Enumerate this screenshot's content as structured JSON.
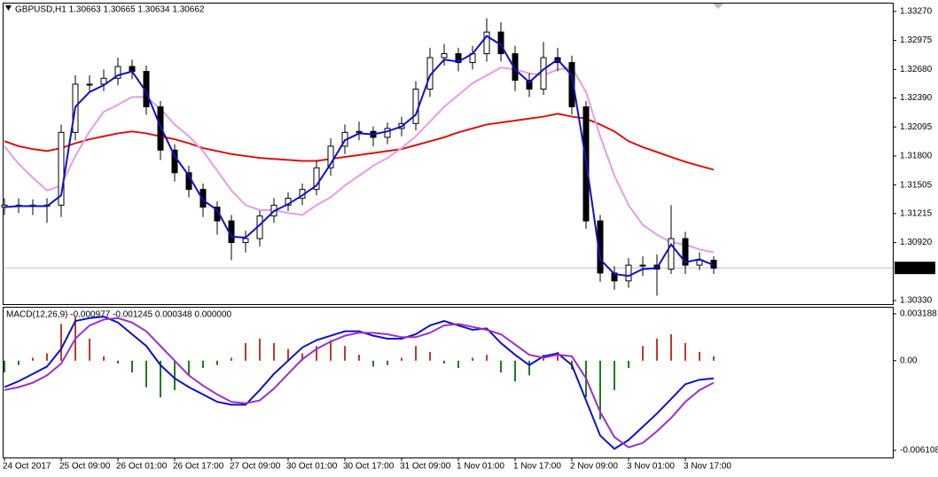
{
  "chart_data": [
    {
      "type": "candlestick",
      "title": "GBPUSD,H1  1.30663 1.30665 1.30634 1.30662",
      "open": [
        1.3128,
        1.313,
        1.313,
        1.3129,
        1.313,
        1.3204,
        1.3253,
        1.3253,
        1.3259,
        1.3271,
        1.3266,
        1.323,
        1.3186,
        1.3163,
        1.3146,
        1.3128,
        1.3114,
        1.3092,
        1.3096,
        1.3119,
        1.313,
        1.3137,
        1.3146,
        1.3168,
        1.319,
        1.3204,
        1.3205,
        1.3199,
        1.3208,
        1.3213,
        1.3248,
        1.328,
        1.3284,
        1.3275,
        1.3284,
        1.3306,
        1.3284,
        1.3257,
        1.3248,
        1.328,
        1.3275,
        1.323,
        1.3114,
        1.3061,
        1.3053,
        1.3069,
        1.3069,
        1.3065,
        1.3096,
        1.3069,
        1.3074
      ],
      "high": [
        1.3137,
        1.3137,
        1.3136,
        1.3137,
        1.3212,
        1.3262,
        1.3262,
        1.3268,
        1.328,
        1.3278,
        1.3272,
        1.3236,
        1.3192,
        1.317,
        1.3152,
        1.3134,
        1.312,
        1.3104,
        1.3124,
        1.3137,
        1.3143,
        1.3152,
        1.3175,
        1.3198,
        1.3212,
        1.3215,
        1.321,
        1.3214,
        1.322,
        1.3256,
        1.329,
        1.3294,
        1.329,
        1.3292,
        1.332,
        1.3316,
        1.3292,
        1.3264,
        1.3296,
        1.329,
        1.3282,
        1.3236,
        1.312,
        1.3068,
        1.3076,
        1.3078,
        1.308,
        1.313,
        1.3103,
        1.3082,
        1.3078
      ],
      "low": [
        1.312,
        1.3122,
        1.312,
        1.3112,
        1.3118,
        1.3196,
        1.3245,
        1.3246,
        1.3252,
        1.3258,
        1.3222,
        1.3176,
        1.3154,
        1.3138,
        1.3118,
        1.31,
        1.3074,
        1.3082,
        1.3088,
        1.3112,
        1.3124,
        1.313,
        1.314,
        1.316,
        1.3182,
        1.3196,
        1.319,
        1.3192,
        1.32,
        1.3206,
        1.324,
        1.3272,
        1.3266,
        1.3268,
        1.3276,
        1.3276,
        1.3246,
        1.324,
        1.3242,
        1.3266,
        1.3222,
        1.3106,
        1.3052,
        1.3044,
        1.3046,
        1.3058,
        1.3038,
        1.306,
        1.306,
        1.3064,
        1.306
      ],
      "close": [
        1.313,
        1.313,
        1.3129,
        1.313,
        1.3204,
        1.3253,
        1.3253,
        1.3259,
        1.3271,
        1.3266,
        1.323,
        1.3186,
        1.3163,
        1.3146,
        1.3128,
        1.3114,
        1.3092,
        1.3096,
        1.3119,
        1.313,
        1.3137,
        1.3146,
        1.3168,
        1.319,
        1.3204,
        1.3205,
        1.3199,
        1.3208,
        1.3213,
        1.3248,
        1.328,
        1.3284,
        1.3275,
        1.3284,
        1.3306,
        1.3284,
        1.3257,
        1.3248,
        1.328,
        1.3275,
        1.323,
        1.3114,
        1.3061,
        1.3053,
        1.3069,
        1.3069,
        1.3065,
        1.3096,
        1.3069,
        1.3074,
        1.3066
      ],
      "up_color": "#ffffff",
      "down_color": "#000000",
      "series": [
        {
          "color": "#dd1111",
          "values": [
            1.3195,
            1.319,
            1.3187,
            1.3185,
            1.3188,
            1.3193,
            1.3197,
            1.32,
            1.3203,
            1.3205,
            1.3203,
            1.32,
            1.3197,
            1.3193,
            1.3188,
            1.3185,
            1.3182,
            1.318,
            1.3178,
            1.3177,
            1.3176,
            1.3175,
            1.3175,
            1.3177,
            1.3179,
            1.3181,
            1.3183,
            1.3185,
            1.3187,
            1.3191,
            1.3195,
            1.3199,
            1.3204,
            1.3208,
            1.3212,
            1.3214,
            1.3216,
            1.3218,
            1.322,
            1.3223,
            1.322,
            1.3218,
            1.3212,
            1.3205,
            1.3195,
            1.3189,
            1.3184,
            1.3179,
            1.3174,
            1.317,
            1.3166
          ]
        },
        {
          "color": "#e89be8",
          "values": [
            1.319,
            1.3172,
            1.3158,
            1.3145,
            1.315,
            1.318,
            1.3205,
            1.3225,
            1.3232,
            1.324,
            1.324,
            1.3228,
            1.3212,
            1.32,
            1.3185,
            1.3165,
            1.3145,
            1.313,
            1.3125,
            1.3125,
            1.3122,
            1.312,
            1.313,
            1.3138,
            1.315,
            1.316,
            1.317,
            1.3178,
            1.3188,
            1.32,
            1.3215,
            1.323,
            1.3242,
            1.3254,
            1.3262,
            1.327,
            1.3268,
            1.3264,
            1.3262,
            1.3268,
            1.327,
            1.3245,
            1.32,
            1.316,
            1.313,
            1.311,
            1.31,
            1.3092,
            1.309,
            1.3085,
            1.3082
          ]
        },
        {
          "color": "#1010c8",
          "values": [
            1.3128,
            1.3129,
            1.3129,
            1.3129,
            1.314,
            1.323,
            1.3245,
            1.3252,
            1.3262,
            1.3266,
            1.3245,
            1.321,
            1.318,
            1.316,
            1.3135,
            1.3125,
            1.3098,
            1.3097,
            1.311,
            1.3124,
            1.3131,
            1.314,
            1.315,
            1.3172,
            1.3196,
            1.3203,
            1.3202,
            1.3205,
            1.321,
            1.3222,
            1.3262,
            1.3278,
            1.3276,
            1.3284,
            1.3302,
            1.3293,
            1.3268,
            1.3255,
            1.3268,
            1.3278,
            1.3262,
            1.3175,
            1.3075,
            1.306,
            1.3058,
            1.3065,
            1.3066,
            1.309,
            1.3072,
            1.3075,
            1.3069
          ]
        }
      ],
      "last_price": 1.30662,
      "ylim": [
        1.30294,
        1.3335
      ],
      "yticks": [
        {
          "value": 1.3327,
          "label": "1.33270"
        },
        1.32975,
        {
          "value": 1.3268,
          "label": "1.32680"
        },
        {
          "value": 1.3239,
          "label": "1.32390"
        },
        1.32095,
        {
          "value": 1.318,
          "label": "1.31800"
        },
        1.31505,
        1.31215,
        {
          "value": 1.3092,
          "label": "1.30920"
        },
        {
          "value": 1.3033,
          "label": "1.30330"
        }
      ]
    },
    {
      "type": "macd",
      "title": "MACD(12,26,9) -0.000977 -0.001245 0.000348 0.000000",
      "categories": [
        "24 Oct 2017",
        null,
        null,
        null,
        "25 Oct 09:00",
        null,
        null,
        null,
        "26 Oct 01:00",
        null,
        null,
        null,
        "26 Oct 17:00",
        null,
        null,
        null,
        "27 Oct 09:00",
        null,
        null,
        null,
        "30 Oct 01:00",
        null,
        null,
        null,
        "30 Oct 17:00",
        null,
        null,
        null,
        "31 Oct 09:00",
        null,
        null,
        null,
        "1 Nov 01:00",
        null,
        null,
        null,
        "1 Nov 17:00",
        null,
        null,
        null,
        "2 Nov 09:00",
        null,
        null,
        null,
        "3 Nov 01:00",
        null,
        null,
        null,
        "3 Nov 17:00",
        null,
        null
      ],
      "values": [
        -0.0008,
        -0.0003,
        0.0002,
        0.0005,
        0.0025,
        0.003,
        0.0015,
        0.0003,
        -0.0002,
        -0.0008,
        -0.0018,
        -0.0025,
        -0.002,
        -0.001,
        -0.0005,
        -0.0003,
        0.0002,
        0.0012,
        0.0015,
        0.0012,
        0.0008,
        0.0005,
        0.001,
        0.0014,
        0.001,
        0.0004,
        -0.0004,
        -0.0003,
        0.0002,
        0.001,
        0.0006,
        -0.0002,
        -0.0005,
        0.0002,
        0.0004,
        -0.0008,
        -0.0014,
        -0.001,
        0.0004,
        0.0006,
        -0.0006,
        -0.0025,
        -0.004,
        -0.002,
        -0.0005,
        0.001,
        0.0015,
        0.0018,
        0.0012,
        0.0006,
        0.0003
      ],
      "positive_color": "#c0392b",
      "negative_color": "#1e7b1e",
      "series": [
        {
          "color": "#1010c8",
          "values": [
            -0.0018,
            -0.0014,
            -0.0009,
            -0.0004,
            0.0008,
            0.0027,
            0.0029,
            0.003,
            0.0026,
            0.0018,
            0.001,
            -0.0003,
            -0.0012,
            -0.0018,
            -0.0023,
            -0.0028,
            -0.003,
            -0.003,
            -0.002,
            -0.0009,
            0.0,
            0.0009,
            0.0014,
            0.0017,
            0.002,
            0.002,
            0.0017,
            0.0015,
            0.0015,
            0.0018,
            0.0024,
            0.0027,
            0.0024,
            0.0021,
            0.0022,
            0.0012,
            0.0004,
            -0.0003,
            0.0003,
            0.0005,
            -0.0003,
            -0.0027,
            -0.0051,
            -0.006,
            -0.0054,
            -0.0045,
            -0.0036,
            -0.0026,
            -0.0016,
            -0.0013,
            -0.0012
          ]
        },
        {
          "color": "#9b30c8",
          "values": [
            -0.002,
            -0.0018,
            -0.0015,
            -0.001,
            -0.0002,
            0.0015,
            0.0024,
            0.0028,
            0.0029,
            0.0026,
            0.002,
            0.001,
            0.0,
            -0.001,
            -0.0017,
            -0.0023,
            -0.0028,
            -0.0029,
            -0.0027,
            -0.0019,
            -0.0009,
            0.0001,
            0.0008,
            0.0013,
            0.0017,
            0.0019,
            0.0019,
            0.0018,
            0.0016,
            0.0016,
            0.0019,
            0.0024,
            0.0025,
            0.0023,
            0.0021,
            0.0018,
            0.0011,
            0.0004,
            0.0002,
            0.0004,
            0.0003,
            -0.0012,
            -0.0035,
            -0.0052,
            -0.0059,
            -0.0056,
            -0.0048,
            -0.0039,
            -0.0028,
            -0.002,
            -0.0015
          ]
        }
      ],
      "ylim": [
        -0.00659,
        0.00361
      ],
      "yticks": [
        0.003188,
        {
          "value": 0,
          "label": "0.00"
        },
        -0.006108
      ]
    }
  ]
}
